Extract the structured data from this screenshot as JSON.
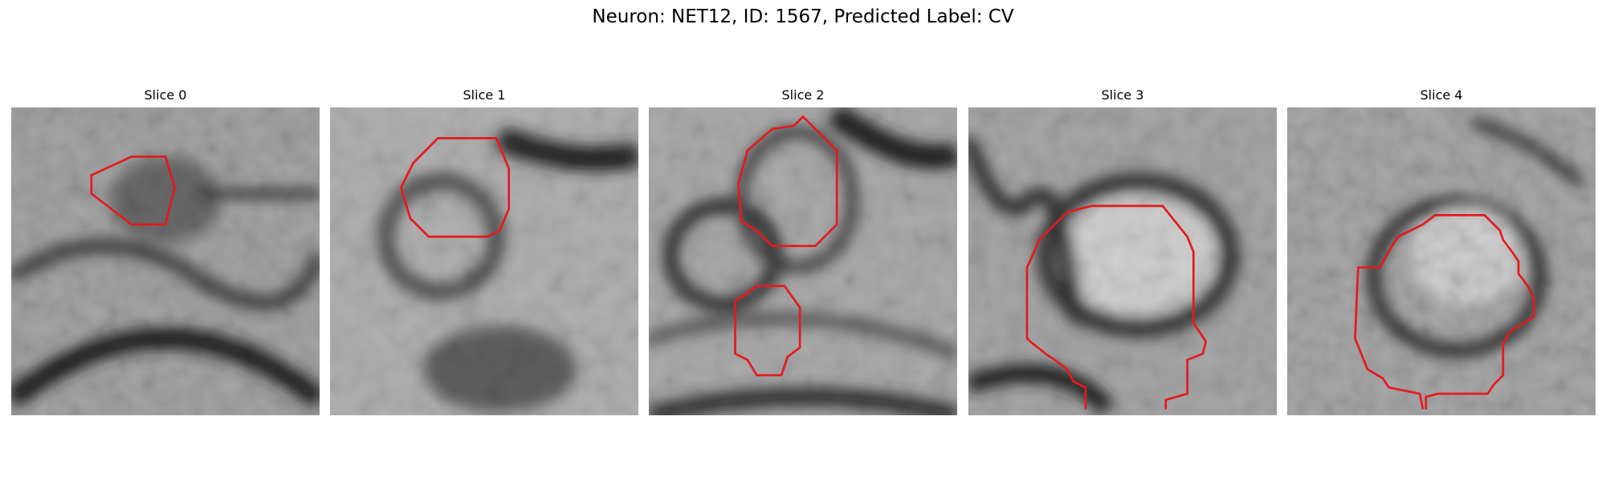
{
  "figure": {
    "title": "Neuron: NET12, ID: 1567, Predicted Label: CV"
  },
  "panels": [
    {
      "label": "Slice 0"
    },
    {
      "label": "Slice 1"
    },
    {
      "label": "Slice 2"
    },
    {
      "label": "Slice 3"
    },
    {
      "label": "Slice 4"
    }
  ],
  "contour_color": "#e41a1c"
}
